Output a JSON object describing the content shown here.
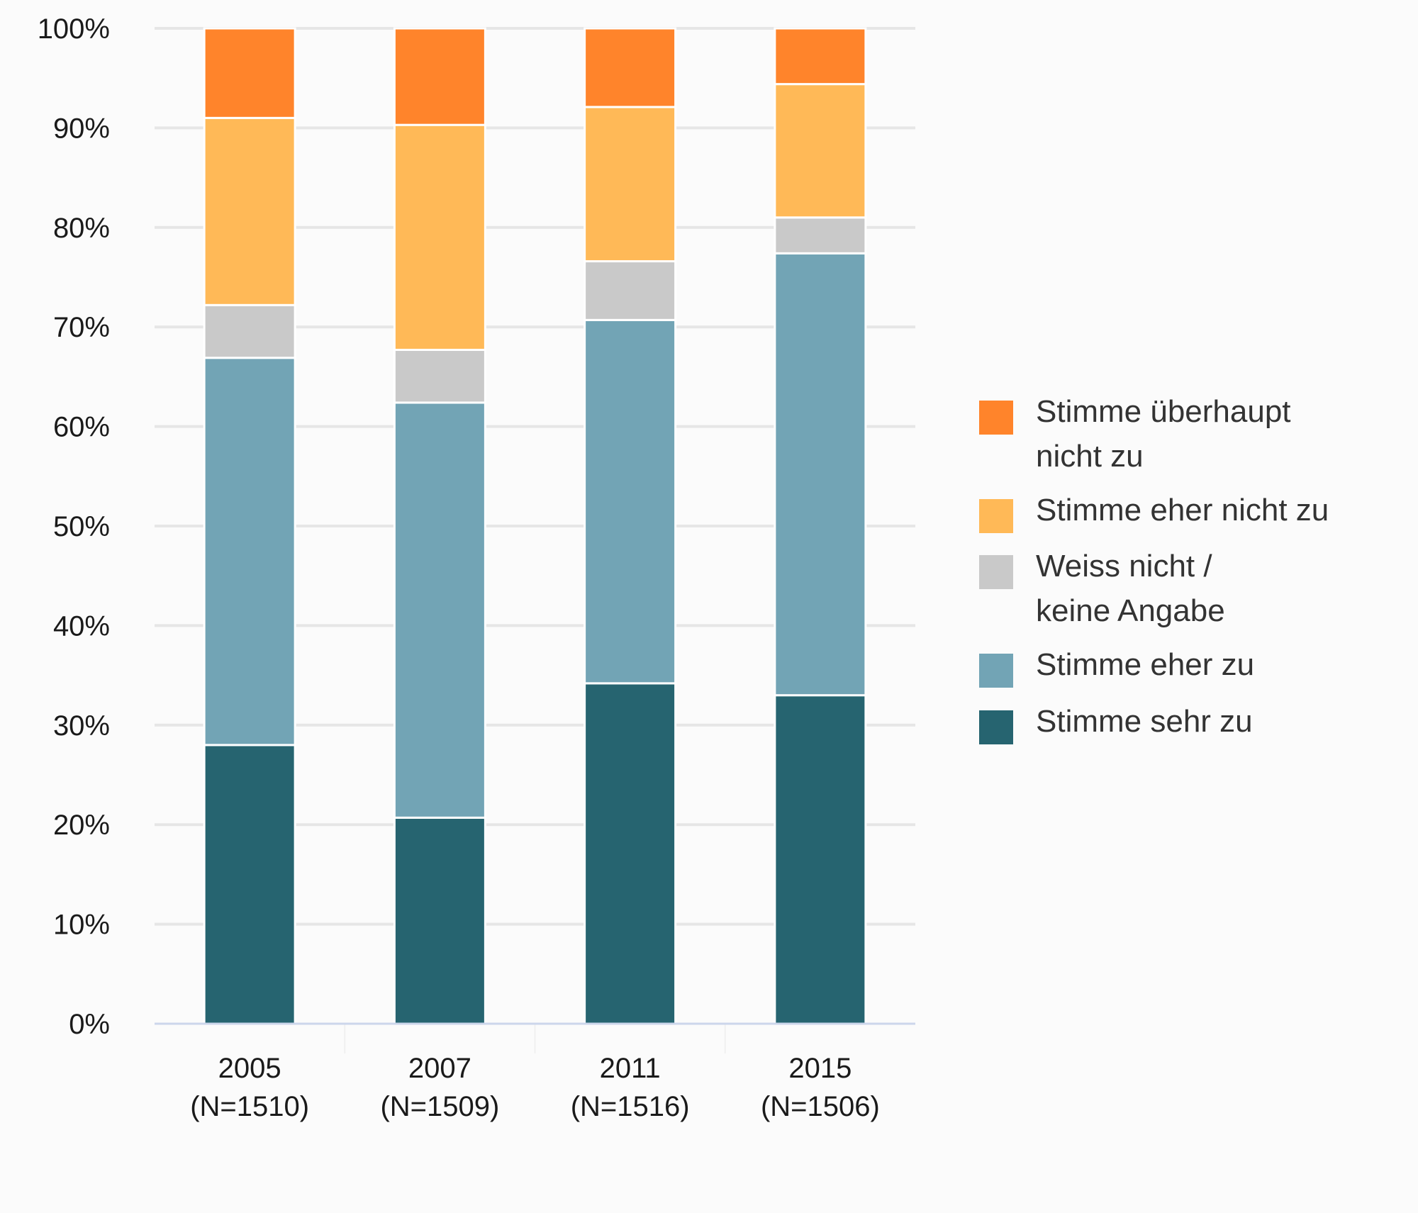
{
  "chart_data": {
    "type": "bar",
    "stacked": true,
    "title": "",
    "xlabel": "",
    "ylabel": "",
    "ylim": [
      0,
      100
    ],
    "y_ticks": [
      "0%",
      "10%",
      "20%",
      "30%",
      "40%",
      "50%",
      "60%",
      "70%",
      "80%",
      "90%",
      "100%"
    ],
    "grid": true,
    "legend_position": "right",
    "categories": [
      [
        "2005",
        "(N=1510)"
      ],
      [
        "2007",
        "(N=1509)"
      ],
      [
        "2011",
        "(N=1516)"
      ],
      [
        "2015",
        "(N=1506)"
      ]
    ],
    "series": [
      {
        "name": "Stimme sehr zu",
        "color": "#266470",
        "values": [
          28.0,
          20.7,
          34.2,
          33.0
        ]
      },
      {
        "name": "Stimme eher zu",
        "color": "#72a4b5",
        "values": [
          38.9,
          41.7,
          36.5,
          44.4
        ]
      },
      {
        "name": "Weiss nicht / keine Angabe",
        "color": "#c9c9c9",
        "values": [
          5.3,
          5.3,
          5.9,
          3.6
        ]
      },
      {
        "name": "Stimme eher nicht zu",
        "color": "#ffb957",
        "values": [
          18.8,
          22.6,
          15.5,
          13.4
        ]
      },
      {
        "name": "Stimme überhaupt nicht zu",
        "color": "#ff842b",
        "values": [
          9.0,
          9.7,
          7.9,
          5.6
        ]
      }
    ],
    "legend": [
      {
        "lines": [
          "Stimme überhaupt",
          "nicht zu"
        ],
        "color": "#ff842b"
      },
      {
        "lines": [
          "Stimme eher nicht zu"
        ],
        "color": "#ffb957"
      },
      {
        "lines": [
          "Weiss nicht /",
          "keine Angabe"
        ],
        "color": "#c9c9c9"
      },
      {
        "lines": [
          "Stimme eher zu"
        ],
        "color": "#72a4b5"
      },
      {
        "lines": [
          "Stimme sehr zu"
        ],
        "color": "#266470"
      }
    ],
    "colors": {
      "background": "#fbfbfb",
      "gridline": "#e6e6e6",
      "axis": "#ccd6eb",
      "segment_border": "#ffffff"
    }
  }
}
